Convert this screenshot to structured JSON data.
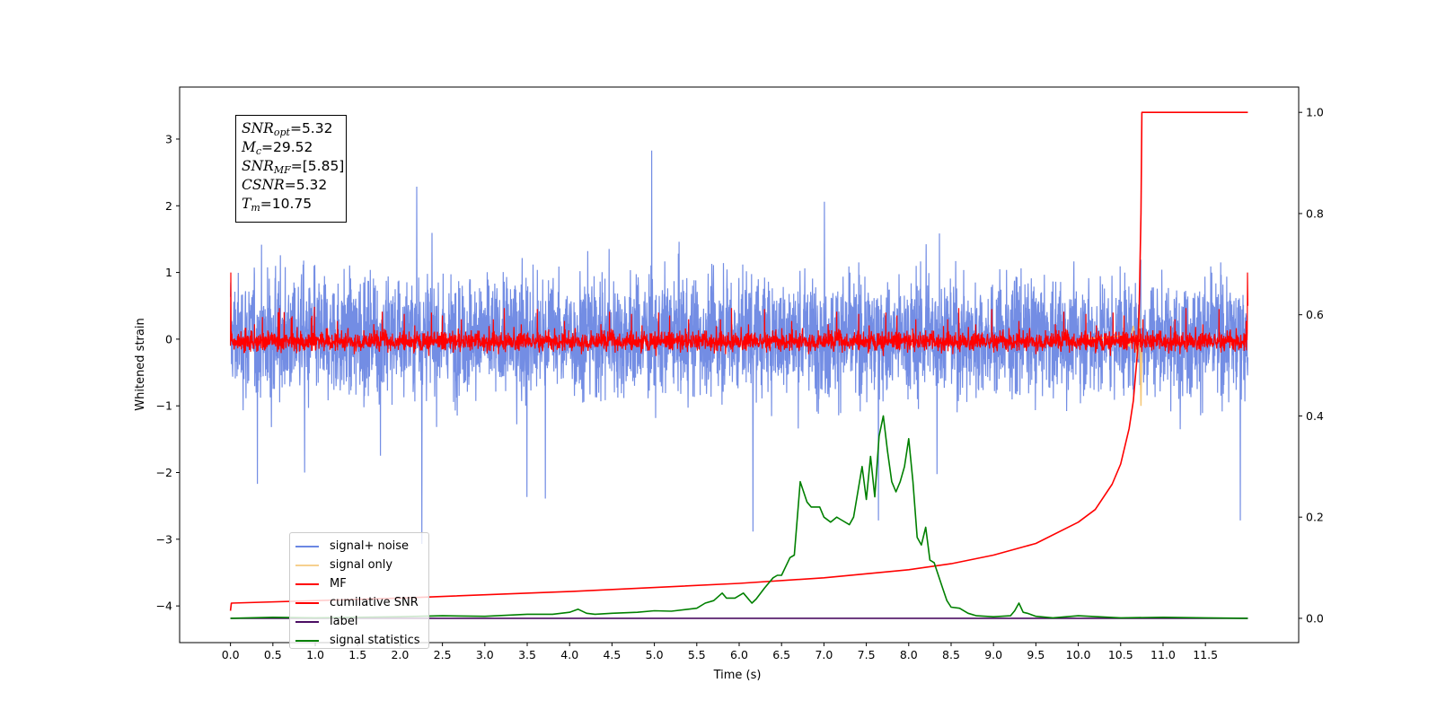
{
  "figure": {
    "annotation": [
      {
        "sym": "SNR",
        "sub": "opt",
        "value": "=5.32"
      },
      {
        "sym": "M",
        "sub": "c",
        "value": "=29.52"
      },
      {
        "sym": "SNR",
        "sub": "MF",
        "value": "=[5.85]"
      },
      {
        "sym": "CSNR",
        "sub": "",
        "value": "=5.32"
      },
      {
        "sym": "T",
        "sub": "m",
        "value": "=10.75"
      }
    ]
  },
  "chart_data": {
    "type": "line",
    "title": "",
    "xlabel": "Time (s)",
    "ylabel": "Whitened strain",
    "xlim": [
      -0.6,
      12.6
    ],
    "ylim": [
      -4.55,
      3.78
    ],
    "y2lim": [
      -0.048,
      1.05
    ],
    "xticks": [
      0.0,
      0.5,
      1.0,
      1.5,
      2.0,
      2.5,
      3.0,
      3.5,
      4.0,
      4.5,
      5.0,
      5.5,
      6.0,
      6.5,
      7.0,
      7.5,
      8.0,
      8.5,
      9.0,
      9.5,
      10.0,
      10.5,
      11.0,
      11.5
    ],
    "xtick_labels": [
      "0.0",
      "0.5",
      "1.0",
      "1.5",
      "2.0",
      "2.5",
      "3.0",
      "3.5",
      "4.0",
      "4.5",
      "5.0",
      "5.5",
      "6.0",
      "6.5",
      "7.0",
      "7.5",
      "8.0",
      "8.5",
      "9.0",
      "9.5",
      "10.0",
      "10.5",
      "11.0",
      "11.5"
    ],
    "yticks": [
      -4,
      -3,
      -2,
      -1,
      0,
      1,
      2,
      3
    ],
    "ytick_labels": [
      "−4",
      "−3",
      "−2",
      "−1",
      "0",
      "1",
      "2",
      "3"
    ],
    "y2ticks": [
      0.0,
      0.2,
      0.4,
      0.6,
      0.8,
      1.0
    ],
    "y2tick_labels": [
      "0.0",
      "0.2",
      "0.4",
      "0.6",
      "0.8",
      "1.0"
    ],
    "legend_position": "lower-left",
    "series": [
      {
        "name": "signal+ noise",
        "color": "#6b87e3",
        "axis": "left",
        "description": "whitened strain noise, roughly ±2 with spikes to ±3.5, from 0 to 12 s"
      },
      {
        "name": "signal only",
        "color": "#f5c87a",
        "axis": "left",
        "x": [
          10.0,
          10.3,
          10.5,
          10.6,
          10.65,
          10.7,
          10.72,
          10.74,
          10.75
        ],
        "y": [
          0.0,
          0.02,
          0.05,
          -0.1,
          0.2,
          -0.3,
          0.5,
          -1.0,
          0.0
        ]
      },
      {
        "name": "MF",
        "color": "#ff0000",
        "axis": "left",
        "description": "matched-filter output, mostly between -0.25 and 0.5, edges reaching 1.0"
      },
      {
        "name": "cumilative SNR",
        "color": "#ff0000",
        "axis": "right",
        "x": [
          0.0,
          0.01,
          2.0,
          4.0,
          6.0,
          7.0,
          8.0,
          8.5,
          9.0,
          9.5,
          10.0,
          10.2,
          10.4,
          10.5,
          10.6,
          10.65,
          10.7,
          10.72,
          10.74,
          10.75,
          12.0
        ],
        "y": [
          0.015,
          0.03,
          0.04,
          0.053,
          0.069,
          0.08,
          0.096,
          0.108,
          0.125,
          0.148,
          0.19,
          0.215,
          0.265,
          0.305,
          0.375,
          0.43,
          0.53,
          0.62,
          0.8,
          1.0,
          1.0
        ]
      },
      {
        "name": "label",
        "color": "#4b0e62",
        "axis": "right",
        "x": [
          0.0,
          12.0
        ],
        "y": [
          0.0,
          0.0
        ]
      },
      {
        "name": "signal statistics",
        "color": "#008000",
        "axis": "right",
        "x": [
          0.0,
          0.5,
          1.0,
          1.5,
          2.0,
          2.5,
          3.0,
          3.5,
          3.8,
          4.0,
          4.1,
          4.2,
          4.3,
          4.5,
          4.8,
          5.0,
          5.2,
          5.5,
          5.6,
          5.7,
          5.8,
          5.85,
          5.95,
          6.05,
          6.15,
          6.2,
          6.3,
          6.4,
          6.45,
          6.5,
          6.6,
          6.65,
          6.72,
          6.8,
          6.85,
          6.95,
          7.0,
          7.08,
          7.15,
          7.2,
          7.3,
          7.35,
          7.45,
          7.5,
          7.55,
          7.6,
          7.65,
          7.7,
          7.75,
          7.8,
          7.85,
          7.9,
          7.95,
          8.0,
          8.05,
          8.1,
          8.15,
          8.2,
          8.25,
          8.3,
          8.35,
          8.4,
          8.45,
          8.5,
          8.6,
          8.7,
          8.8,
          9.0,
          9.2,
          9.25,
          9.3,
          9.35,
          9.4,
          9.5,
          9.7,
          10.0,
          10.5,
          11.0,
          11.5,
          12.0
        ],
        "y": [
          0.0,
          0.002,
          0.001,
          0.002,
          0.003,
          0.005,
          0.004,
          0.008,
          0.008,
          0.012,
          0.018,
          0.01,
          0.008,
          0.01,
          0.012,
          0.015,
          0.014,
          0.02,
          0.03,
          0.035,
          0.05,
          0.04,
          0.04,
          0.05,
          0.03,
          0.038,
          0.06,
          0.08,
          0.085,
          0.085,
          0.12,
          0.125,
          0.27,
          0.23,
          0.22,
          0.22,
          0.2,
          0.19,
          0.2,
          0.195,
          0.185,
          0.2,
          0.3,
          0.235,
          0.32,
          0.24,
          0.36,
          0.4,
          0.33,
          0.27,
          0.25,
          0.27,
          0.3,
          0.355,
          0.27,
          0.16,
          0.145,
          0.18,
          0.115,
          0.11,
          0.085,
          0.06,
          0.035,
          0.022,
          0.02,
          0.01,
          0.005,
          0.003,
          0.005,
          0.015,
          0.03,
          0.012,
          0.01,
          0.004,
          0.001,
          0.005,
          0.001,
          0.002,
          0.001,
          0.0
        ]
      }
    ]
  }
}
